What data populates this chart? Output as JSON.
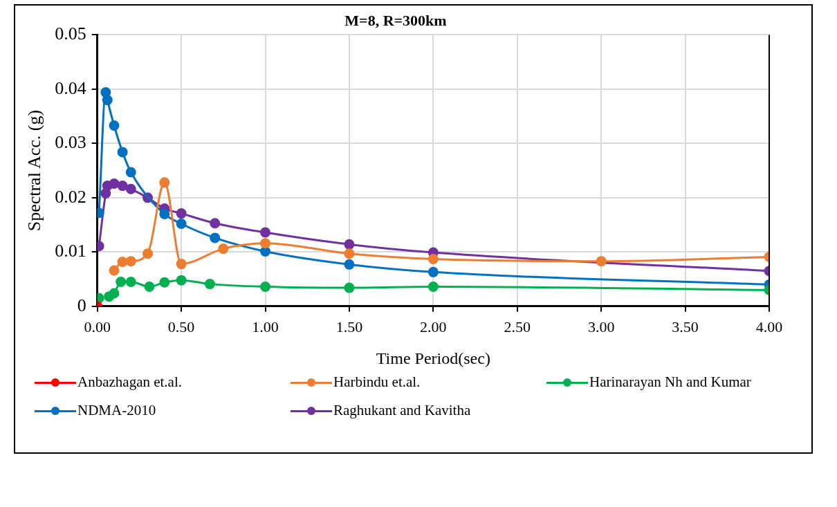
{
  "chart_data": {
    "type": "line",
    "title": "M=8, R=300km",
    "xlabel": "Time Period(sec)",
    "ylabel": "Spectral Acc. (g)",
    "xlim": [
      0,
      4
    ],
    "xticks": [
      {
        "value": 0,
        "label": "0.00"
      },
      {
        "value": 0.5,
        "label": "0.50"
      },
      {
        "value": 1,
        "label": "1.00"
      },
      {
        "value": 1.5,
        "label": "1.50"
      },
      {
        "value": 2,
        "label": "2.00"
      },
      {
        "value": 2.5,
        "label": "2.50"
      },
      {
        "value": 3,
        "label": "3.00"
      },
      {
        "value": 3.5,
        "label": "3.50"
      },
      {
        "value": 4,
        "label": "4.00"
      }
    ],
    "ylim": [
      0,
      0.05
    ],
    "yticks": [
      0,
      0.01,
      0.02,
      0.03,
      0.04,
      0.05
    ],
    "grid": true,
    "legend": "bottom",
    "marker": "circle",
    "line_style": "solid",
    "series": [
      {
        "name": "Anbazhagan et.al.",
        "color": "#ff0000",
        "x": [
          0
        ],
        "values": [
          0
        ]
      },
      {
        "name": "Harbindu et.al.",
        "color": "#ed7d31",
        "x": [
          0.1,
          0.15,
          0.2,
          0.3,
          0.4,
          0.5,
          0.75,
          1.0,
          1.5,
          2.0,
          3.0,
          4.0
        ],
        "values": [
          0.0066,
          0.0082,
          0.0083,
          0.0097,
          0.0228,
          0.0078,
          0.0106,
          0.0116,
          0.0097,
          0.0087,
          0.0083,
          0.0091
        ]
      },
      {
        "name": "Harinarayan Nh and Kumar",
        "color": "#00b050",
        "x": [
          0.01,
          0.05,
          0.07,
          0.1,
          0.14,
          0.2,
          0.31,
          0.4,
          0.5,
          0.67,
          1.0,
          1.5,
          2.0,
          4.0
        ],
        "values": [
          0.0015,
          null,
          0.0018,
          0.0024,
          0.0045,
          0.0045,
          0.0036,
          0.0044,
          0.0048,
          0.0041,
          0.0036,
          0.0034,
          0.0036,
          0.003
        ]
      },
      {
        "name": "NDMA-2010",
        "color": "#0070c0",
        "x": [
          0.01,
          0.05,
          0.06,
          0.1,
          0.15,
          0.2,
          0.4,
          0.5,
          0.7,
          1.0,
          1.5,
          2.0,
          4.0
        ],
        "values": [
          0.0172,
          0.0394,
          0.038,
          0.0333,
          0.0284,
          0.0247,
          0.017,
          0.0152,
          0.0126,
          0.0101,
          0.0077,
          0.0063,
          0.004
        ]
      },
      {
        "name": "Raghukant and Kavitha",
        "color": "#7030a0",
        "x": [
          0.01,
          0.05,
          0.06,
          0.1,
          0.15,
          0.2,
          0.3,
          0.4,
          0.5,
          0.7,
          1.0,
          1.5,
          2.0,
          4.0
        ],
        "values": [
          0.0111,
          0.0208,
          0.0222,
          0.0226,
          0.0222,
          0.0216,
          0.02,
          0.018,
          0.0171,
          0.0153,
          0.0136,
          0.0114,
          0.0099,
          0.0065
        ]
      }
    ]
  }
}
